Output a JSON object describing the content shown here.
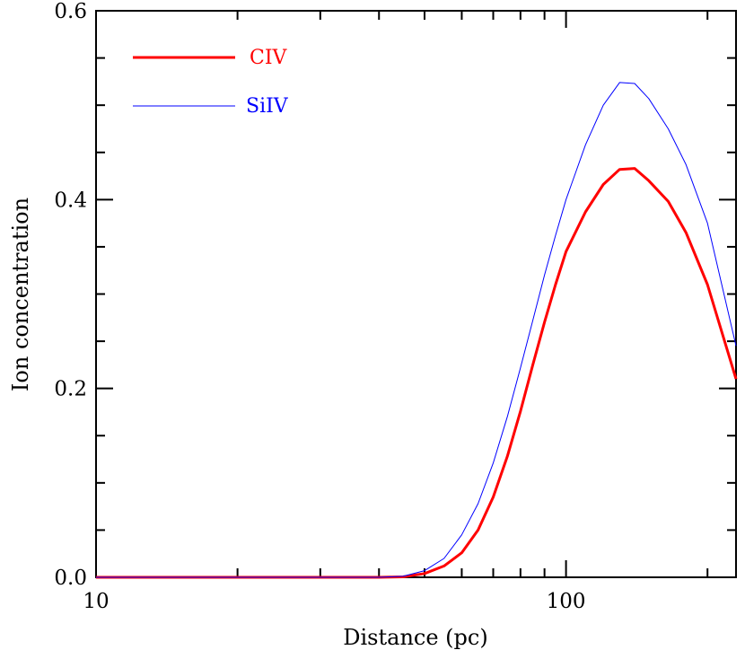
{
  "chart_data": {
    "type": "line",
    "xlabel": "Distance (pc)",
    "ylabel": "Ion concentration",
    "xscale": "log",
    "xlim": [
      10,
      230
    ],
    "ylim": [
      0,
      0.6
    ],
    "x_tick_labels": [
      "10",
      "100"
    ],
    "y_tick_labels": [
      "0.0",
      "0.2",
      "0.4",
      "0.6"
    ],
    "grid": false,
    "legend_position": "top-left",
    "series": [
      {
        "name": "CIV",
        "color": "#ff0000",
        "x": [
          10,
          20,
          40,
          45,
          50,
          55,
          60,
          65,
          70,
          75,
          80,
          85,
          90,
          95,
          100,
          110,
          120,
          130,
          140,
          150,
          165,
          180,
          200,
          230
        ],
        "y": [
          0,
          0,
          0,
          0.0005,
          0.004,
          0.012,
          0.026,
          0.05,
          0.085,
          0.128,
          0.176,
          0.225,
          0.27,
          0.31,
          0.345,
          0.387,
          0.416,
          0.432,
          0.433,
          0.42,
          0.398,
          0.365,
          0.31,
          0.21
        ]
      },
      {
        "name": "SiIV",
        "color": "#0000ff",
        "x": [
          10,
          20,
          40,
          45,
          50,
          55,
          60,
          65,
          70,
          75,
          80,
          85,
          90,
          95,
          100,
          110,
          120,
          130,
          140,
          150,
          165,
          180,
          200,
          230
        ],
        "y": [
          0,
          0,
          0,
          0.001,
          0.007,
          0.02,
          0.045,
          0.078,
          0.121,
          0.17,
          0.222,
          0.272,
          0.32,
          0.362,
          0.4,
          0.458,
          0.5,
          0.524,
          0.523,
          0.507,
          0.475,
          0.437,
          0.375,
          0.245
        ]
      }
    ]
  }
}
